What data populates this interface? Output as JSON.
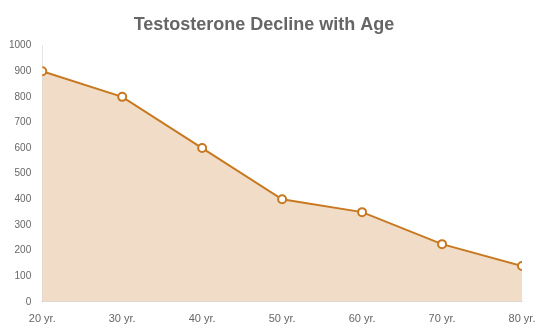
{
  "chart_data": {
    "type": "area",
    "title": "Testosterone Decline with Age",
    "x": [
      20,
      30,
      40,
      50,
      60,
      70,
      80
    ],
    "values": [
      900,
      800,
      600,
      400,
      350,
      225,
      140
    ],
    "color": "#C87820",
    "marker": "circle",
    "xlim": [
      20,
      80
    ],
    "xticks": [
      {
        "value": 20,
        "label": "20 yr."
      },
      {
        "value": 30,
        "label": "30 yr."
      },
      {
        "value": 40,
        "label": "40 yr."
      },
      {
        "value": 50,
        "label": "50 yr."
      },
      {
        "value": 60,
        "label": "60 yr."
      },
      {
        "value": 70,
        "label": "70 yr."
      },
      {
        "value": 80,
        "label": "80 yr."
      }
    ],
    "ylim": [
      0,
      1000
    ],
    "yticks": [
      0,
      100,
      200,
      300,
      400,
      500,
      600,
      700,
      800,
      900,
      1000
    ],
    "grid": false
  }
}
